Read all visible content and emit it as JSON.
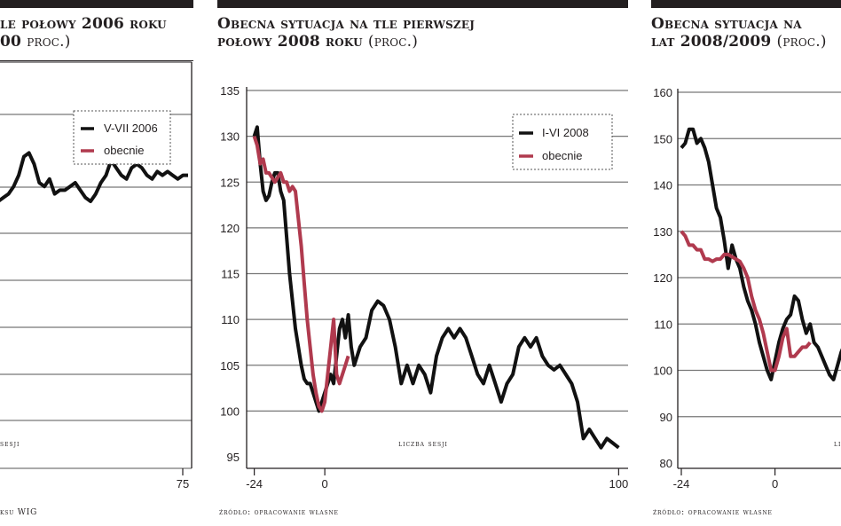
{
  "panels": [
    {
      "title_line1": "le połowy 2006 roku",
      "title_line2": "00",
      "title_unit": "proc.)",
      "source": "ksu WIG",
      "chart_data": {
        "type": "line",
        "title": "…le połowy 2006 roku (…00 proc.)",
        "xlabel": "sesji",
        "ylabel": "",
        "x_ticks": [
          75
        ],
        "legend": [
          "V-VII 2006",
          "obecnie"
        ],
        "legend_placement": "top-right",
        "series": [
          {
            "name": "V-VII 2006",
            "color": "#111111",
            "x": [
              1,
              3,
              5,
              7,
              9,
              11,
              13,
              15,
              17,
              19,
              21,
              23,
              25,
              27,
              29,
              31,
              33,
              35,
              37,
              39,
              41,
              43,
              45,
              47,
              49,
              51,
              53,
              55,
              57,
              59,
              61,
              63,
              65,
              67,
              69,
              71,
              73,
              75
            ],
            "y": [
              15,
              16,
              17,
              19,
              22,
              27,
              28,
              25,
              20,
              19,
              21,
              17,
              18,
              18,
              19,
              20,
              18,
              16,
              15,
              17,
              20,
              22,
              26,
              24,
              22,
              21,
              24,
              25,
              24,
              22,
              21,
              23,
              22,
              23,
              22,
              21,
              22,
              22
            ]
          }
        ]
      }
    },
    {
      "title_line1": "Obecna sytuacja na tle pierwszej",
      "title_line2": "połowy 2008 roku",
      "title_unit": "(proc.)",
      "source": "źródło: opracowanie własne",
      "chart_data": {
        "type": "line",
        "title": "Obecna sytuacja na tle pierwszej połowy 2008 roku (proc.)",
        "xlabel": "liczba sesji",
        "ylabel": "",
        "x_ticks": [
          -24,
          0,
          100
        ],
        "xlim": [
          -26,
          102
        ],
        "ylim": [
          95,
          135
        ],
        "y_ticks": [
          95,
          100,
          105,
          110,
          115,
          120,
          125,
          130,
          135
        ],
        "grid": "horizontal",
        "legend_placement": "top-right",
        "series": [
          {
            "name": "I-VI 2008",
            "color": "#111111",
            "x": [
              -24,
              -23,
              -22,
              -21,
              -20,
              -19,
              -18,
              -17,
              -16,
              -15,
              -14,
              -13,
              -12,
              -11,
              -10,
              -9,
              -8,
              -7,
              -6,
              -5,
              -4,
              -3,
              -2,
              -1,
              0,
              1,
              2,
              3,
              4,
              5,
              6,
              7,
              8,
              9,
              10,
              12,
              14,
              16,
              18,
              20,
              22,
              24,
              26,
              28,
              30,
              32,
              34,
              36,
              38,
              40,
              42,
              44,
              46,
              48,
              50,
              52,
              54,
              56,
              58,
              60,
              62,
              64,
              66,
              68,
              70,
              72,
              74,
              76,
              78,
              80,
              82,
              84,
              86,
              88,
              90,
              92,
              94,
              96,
              98,
              100
            ],
            "y": [
              130,
              131,
              127,
              124,
              123,
              123.5,
              125,
              126,
              126,
              124,
              123,
              119,
              115,
              112,
              109,
              107,
              105,
              103.5,
              103,
              103,
              102,
              101,
              100,
              101,
              102,
              103,
              104,
              103,
              106,
              109,
              110,
              108,
              110.5,
              107,
              105,
              107,
              108,
              111,
              112,
              111.5,
              110,
              107,
              103,
              105,
              103,
              105,
              104,
              102,
              106,
              108,
              109,
              108,
              109,
              108,
              106,
              104,
              103,
              105,
              103,
              101,
              103,
              104,
              107,
              108,
              107,
              108,
              106,
              105,
              104.5,
              105,
              104,
              103,
              101,
              97,
              98,
              97,
              96,
              97,
              96.5,
              96
            ],
            "note": "values approximated from gridlines"
          },
          {
            "name": "obecnie",
            "color": "#b03a4e",
            "x": [
              -24,
              -23,
              -22,
              -21,
              -20,
              -19,
              -18,
              -17,
              -16,
              -15,
              -14,
              -13,
              -12,
              -11,
              -10,
              -9,
              -8,
              -7,
              -6,
              -5,
              -4,
              -3,
              -2,
              -1,
              0,
              1,
              2,
              3,
              4,
              5,
              6,
              7,
              8
            ],
            "y": [
              130,
              129,
              127,
              127.5,
              126,
              126,
              125.5,
              125,
              125.5,
              126,
              125,
              125,
              124,
              124.5,
              124,
              121,
              118,
              114,
              110,
              107,
              104,
              102,
              100.5,
              100,
              101,
              104,
              107,
              110,
              104,
              103,
              104,
              105,
              106
            ]
          }
        ]
      }
    },
    {
      "title_line1": "Obecna sytuacja na",
      "title_line2": "lat 2008/2009",
      "title_unit": "(proc.)",
      "source": "źródło: opracowanie własne",
      "chart_data": {
        "type": "line",
        "title": "Obecna sytuacja na … lat 2008/2009 (proc.)",
        "xlabel": "",
        "ylabel": "",
        "x_ticks": [
          -24,
          0
        ],
        "ylim": [
          80,
          160
        ],
        "y_ticks": [
          80,
          90,
          100,
          110,
          120,
          130,
          140,
          150,
          160
        ],
        "grid": "horizontal",
        "series": [
          {
            "name": "",
            "color": "#111111",
            "x": [
              -24,
              -23,
              -22,
              -21,
              -20,
              -19,
              -18,
              -17,
              -16,
              -15,
              -14,
              -13,
              -12,
              -11,
              -10,
              -9,
              -8,
              -7,
              -6,
              -5,
              -4,
              -3,
              -2,
              -1,
              0,
              1,
              2,
              3,
              4,
              5,
              6,
              7,
              8,
              9,
              10,
              11,
              12,
              13,
              14,
              15,
              16,
              17,
              18,
              19
            ],
            "y": [
              148,
              149,
              152,
              152,
              149,
              150,
              148,
              145,
              140,
              135,
              133,
              128,
              122,
              127,
              124,
              122,
              118,
              115,
              113,
              110,
              106,
              103,
              100,
              98,
              102,
              106,
              109,
              111,
              112,
              116,
              115,
              111,
              108,
              110,
              106,
              105,
              103,
              101,
              99,
              98,
              101,
              104,
              106,
              107
            ]
          },
          {
            "name": "",
            "color": "#b03a4e",
            "x": [
              -24,
              -23,
              -22,
              -21,
              -20,
              -19,
              -18,
              -17,
              -16,
              -15,
              -14,
              -13,
              -12,
              -11,
              -10,
              -9,
              -8,
              -7,
              -6,
              -5,
              -4,
              -3,
              -2,
              -1,
              0,
              1,
              2,
              3,
              4,
              5,
              6,
              7,
              8,
              9
            ],
            "y": [
              130,
              129,
              127,
              127,
              126,
              126,
              124,
              124,
              123.5,
              124,
              124,
              125,
              125,
              124.5,
              124,
              123.5,
              122,
              120,
              116,
              113,
              111,
              108,
              104,
              100,
              100,
              103,
              107,
              109,
              103,
              103,
              104,
              105,
              105,
              106
            ]
          }
        ]
      }
    }
  ],
  "labels": {
    "p1_tick_75": "75",
    "p1_legend_1": "V-VII 2006",
    "p1_legend_2": "obecnie",
    "p1_axis_cap": "sesji",
    "p2_legend_1": "I-VI 2008",
    "p2_legend_2": "obecnie",
    "p2_axis_cap": "liczba sesji",
    "p3_axis_cap": "li"
  }
}
